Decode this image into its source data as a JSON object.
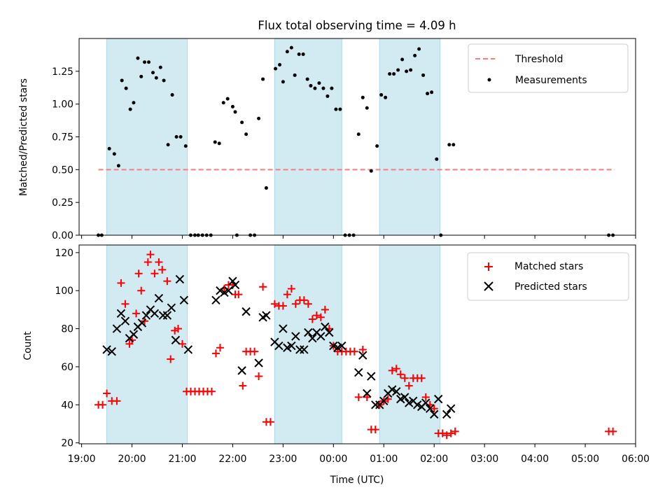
{
  "chart_data": [
    {
      "type": "scatter",
      "title": "Flux total observing time = 4.09 h",
      "ylabel": "Matched/Predicted stars",
      "xlabel": "",
      "x_unit": "hours after 19:00 UTC",
      "xlim": [
        18.95,
        30.0
      ],
      "ylim": [
        0,
        1.5
      ],
      "yticks": [
        "0.00",
        "0.25",
        "0.50",
        "0.75",
        "1.00",
        "1.25"
      ],
      "shaded_intervals": [
        [
          "19:30",
          "21:06"
        ],
        [
          "22:50",
          "00:10"
        ],
        [
          "00:55",
          "02:07"
        ]
      ],
      "legend": {
        "position": "top-right",
        "entries": [
          "Threshold",
          "Measurements"
        ]
      },
      "colors": {
        "threshold": "#ff7a7a",
        "measurements": "#000000",
        "shade": "#add8e6"
      },
      "threshold": {
        "name": "Threshold",
        "value": 0.5,
        "x": [
          "19:20",
          "05:35"
        ]
      },
      "series": [
        {
          "name": "Measurements",
          "points": [
            [
              "19:20",
              0.0
            ],
            [
              "19:24",
              0.0
            ],
            [
              "19:33",
              0.66
            ],
            [
              "19:39",
              0.62
            ],
            [
              "19:44",
              0.53
            ],
            [
              "19:48",
              1.18
            ],
            [
              "19:53",
              1.12
            ],
            [
              "19:58",
              0.96
            ],
            [
              "20:02",
              1.01
            ],
            [
              "20:07",
              1.35
            ],
            [
              "20:11",
              1.21
            ],
            [
              "20:15",
              1.32
            ],
            [
              "20:20",
              1.32
            ],
            [
              "20:25",
              1.24
            ],
            [
              "20:29",
              1.2
            ],
            [
              "20:34",
              1.28
            ],
            [
              "20:38",
              1.18
            ],
            [
              "20:43",
              0.69
            ],
            [
              "20:48",
              1.07
            ],
            [
              "20:53",
              0.75
            ],
            [
              "20:58",
              0.75
            ],
            [
              "21:04",
              0.68
            ],
            [
              "21:10",
              0.0
            ],
            [
              "21:15",
              0.0
            ],
            [
              "21:19",
              0.0
            ],
            [
              "21:24",
              0.0
            ],
            [
              "21:29",
              0.0
            ],
            [
              "21:34",
              0.0
            ],
            [
              "21:39",
              0.71
            ],
            [
              "21:44",
              0.7
            ],
            [
              "21:49",
              1.01
            ],
            [
              "21:54",
              1.04
            ],
            [
              "22:00",
              0.98
            ],
            [
              "22:03",
              0.94
            ],
            [
              "22:05",
              0.0
            ],
            [
              "22:11",
              0.86
            ],
            [
              "22:16",
              0.77
            ],
            [
              "22:21",
              0.0
            ],
            [
              "22:26",
              0.0
            ],
            [
              "22:31",
              0.89
            ],
            [
              "22:36",
              1.19
            ],
            [
              "22:40",
              0.36
            ],
            [
              "22:51",
              1.27
            ],
            [
              "22:56",
              1.3
            ],
            [
              "23:00",
              1.17
            ],
            [
              "23:05",
              1.4
            ],
            [
              "23:10",
              1.43
            ],
            [
              "23:14",
              1.22
            ],
            [
              "23:19",
              1.38
            ],
            [
              "23:24",
              1.38
            ],
            [
              "23:29",
              1.19
            ],
            [
              "23:33",
              1.14
            ],
            [
              "23:38",
              1.12
            ],
            [
              "23:43",
              1.16
            ],
            [
              "23:48",
              1.12
            ],
            [
              "23:53",
              1.06
            ],
            [
              "23:58",
              1.12
            ],
            [
              "00:03",
              0.96
            ],
            [
              "00:08",
              0.96
            ],
            [
              "00:14",
              0.0
            ],
            [
              "00:19",
              0.0
            ],
            [
              "00:24",
              0.0
            ],
            [
              "00:30",
              0.77
            ],
            [
              "00:35",
              1.05
            ],
            [
              "00:40",
              0.97
            ],
            [
              "00:45",
              0.49
            ],
            [
              "00:52",
              0.68
            ],
            [
              "00:57",
              1.07
            ],
            [
              "01:02",
              1.05
            ],
            [
              "01:07",
              1.23
            ],
            [
              "01:12",
              1.23
            ],
            [
              "01:17",
              1.26
            ],
            [
              "01:22",
              1.34
            ],
            [
              "01:27",
              1.25
            ],
            [
              "01:32",
              1.26
            ],
            [
              "01:37",
              1.37
            ],
            [
              "01:42",
              1.42
            ],
            [
              "01:47",
              1.22
            ],
            [
              "01:52",
              1.08
            ],
            [
              "01:57",
              1.09
            ],
            [
              "02:03",
              0.58
            ],
            [
              "02:08",
              0.0
            ],
            [
              "02:18",
              0.69
            ],
            [
              "02:23",
              0.69
            ],
            [
              "05:28",
              0.0
            ],
            [
              "05:33",
              0.0
            ]
          ]
        }
      ]
    },
    {
      "type": "scatter",
      "title": "",
      "ylabel": "Count",
      "xlabel": "Time (UTC)",
      "x_unit": "hours after 19:00 UTC",
      "xlim": [
        18.95,
        30.0
      ],
      "ylim": [
        19.5,
        124
      ],
      "yticks": [
        "20",
        "40",
        "60",
        "80",
        "100",
        "120"
      ],
      "xticks": [
        "19:00",
        "20:00",
        "21:00",
        "22:00",
        "23:00",
        "00:00",
        "01:00",
        "02:00",
        "03:00",
        "04:00",
        "05:00",
        "06:00"
      ],
      "shaded_intervals": [
        [
          "19:30",
          "21:06"
        ],
        [
          "22:50",
          "00:10"
        ],
        [
          "00:55",
          "02:07"
        ]
      ],
      "legend": {
        "position": "top-right",
        "entries": [
          "Matched stars",
          "Predicted stars"
        ]
      },
      "colors": {
        "matched": "#ff0000",
        "predicted": "#000000",
        "shade": "#add8e6"
      },
      "series": [
        {
          "name": "Matched stars",
          "points": [
            [
              "19:20",
              40
            ],
            [
              "19:25",
              40
            ],
            [
              "19:30",
              46
            ],
            [
              "19:36",
              42
            ],
            [
              "19:42",
              42
            ],
            [
              "19:47",
              104
            ],
            [
              "19:52",
              93
            ],
            [
              "19:57",
              72
            ],
            [
              "20:00",
              74
            ],
            [
              "20:05",
              88
            ],
            [
              "20:08",
              109
            ],
            [
              "20:11",
              100
            ],
            [
              "20:15",
              84
            ],
            [
              "20:19",
              115
            ],
            [
              "20:22",
              119
            ],
            [
              "20:27",
              109
            ],
            [
              "20:32",
              115
            ],
            [
              "20:36",
              111
            ],
            [
              "20:42",
              105
            ],
            [
              "20:46",
              64
            ],
            [
              "20:51",
              79
            ],
            [
              "20:55",
              80
            ],
            [
              "21:00",
              72
            ],
            [
              "21:05",
              47
            ],
            [
              "21:10",
              47
            ],
            [
              "21:15",
              47
            ],
            [
              "21:20",
              47
            ],
            [
              "21:25",
              47
            ],
            [
              "21:30",
              47
            ],
            [
              "21:35",
              47
            ],
            [
              "21:40",
              67
            ],
            [
              "21:45",
              70
            ],
            [
              "21:50",
              101
            ],
            [
              "21:55",
              103
            ],
            [
              "22:00",
              103
            ],
            [
              "22:03",
              98
            ],
            [
              "22:07",
              98
            ],
            [
              "22:12",
              50
            ],
            [
              "22:16",
              68
            ],
            [
              "22:21",
              68
            ],
            [
              "22:26",
              68
            ],
            [
              "22:31",
              55
            ],
            [
              "22:36",
              102
            ],
            [
              "22:40",
              31
            ],
            [
              "22:45",
              31
            ],
            [
              "22:50",
              93
            ],
            [
              "22:55",
              92
            ],
            [
              "23:00",
              92
            ],
            [
              "23:05",
              98
            ],
            [
              "23:10",
              101
            ],
            [
              "23:15",
              93
            ],
            [
              "23:20",
              95
            ],
            [
              "23:25",
              95
            ],
            [
              "23:30",
              93
            ],
            [
              "23:35",
              85
            ],
            [
              "23:40",
              87
            ],
            [
              "23:45",
              86
            ],
            [
              "23:50",
              90
            ],
            [
              "23:55",
              80
            ],
            [
              "00:00",
              71
            ],
            [
              "00:05",
              68
            ],
            [
              "00:10",
              68
            ],
            [
              "00:15",
              68
            ],
            [
              "00:20",
              68
            ],
            [
              "00:25",
              68
            ],
            [
              "00:30",
              44
            ],
            [
              "00:35",
              69
            ],
            [
              "00:40",
              44
            ],
            [
              "00:45",
              27
            ],
            [
              "00:50",
              27
            ],
            [
              "00:55",
              40
            ],
            [
              "01:00",
              42
            ],
            [
              "01:05",
              43
            ],
            [
              "01:10",
              58
            ],
            [
              "01:15",
              59
            ],
            [
              "01:20",
              56
            ],
            [
              "01:25",
              54
            ],
            [
              "01:30",
              50
            ],
            [
              "01:35",
              54
            ],
            [
              "01:40",
              54
            ],
            [
              "01:45",
              54
            ],
            [
              "01:50",
              44
            ],
            [
              "01:55",
              40
            ],
            [
              "02:00",
              38
            ],
            [
              "02:05",
              25
            ],
            [
              "02:10",
              25
            ],
            [
              "02:15",
              24
            ],
            [
              "02:20",
              25
            ],
            [
              "02:25",
              26
            ],
            [
              "05:28",
              26
            ],
            [
              "05:33",
              26
            ]
          ]
        },
        {
          "name": "Predicted stars",
          "points": [
            [
              "19:30",
              69
            ],
            [
              "19:36",
              68
            ],
            [
              "19:42",
              80
            ],
            [
              "19:47",
              88
            ],
            [
              "19:52",
              84
            ],
            [
              "19:57",
              75
            ],
            [
              "20:02",
              77
            ],
            [
              "20:07",
              81
            ],
            [
              "20:12",
              83
            ],
            [
              "20:17",
              87
            ],
            [
              "20:22",
              90
            ],
            [
              "20:27",
              88
            ],
            [
              "20:32",
              96
            ],
            [
              "20:37",
              87
            ],
            [
              "20:42",
              87
            ],
            [
              "20:47",
              91
            ],
            [
              "20:52",
              74
            ],
            [
              "20:57",
              106
            ],
            [
              "21:02",
              95
            ],
            [
              "21:07",
              69
            ],
            [
              "21:40",
              95
            ],
            [
              "21:45",
              100
            ],
            [
              "21:50",
              99
            ],
            [
              "21:55",
              100
            ],
            [
              "22:00",
              105
            ],
            [
              "22:03",
              103
            ],
            [
              "22:11",
              58
            ],
            [
              "22:16",
              89
            ],
            [
              "22:31",
              62
            ],
            [
              "22:36",
              86
            ],
            [
              "22:40",
              87
            ],
            [
              "22:50",
              73
            ],
            [
              "22:55",
              71
            ],
            [
              "23:00",
              80
            ],
            [
              "23:05",
              70
            ],
            [
              "23:10",
              71
            ],
            [
              "23:15",
              76
            ],
            [
              "23:20",
              69
            ],
            [
              "23:25",
              69
            ],
            [
              "23:30",
              78
            ],
            [
              "23:35",
              75
            ],
            [
              "23:40",
              78
            ],
            [
              "23:45",
              76
            ],
            [
              "23:50",
              81
            ],
            [
              "23:55",
              78
            ],
            [
              "00:00",
              71
            ],
            [
              "00:05",
              70
            ],
            [
              "00:10",
              71
            ],
            [
              "00:30",
              57
            ],
            [
              "00:35",
              66
            ],
            [
              "00:40",
              46
            ],
            [
              "00:45",
              55
            ],
            [
              "00:50",
              40
            ],
            [
              "00:55",
              40
            ],
            [
              "01:00",
              42
            ],
            [
              "01:05",
              46
            ],
            [
              "01:10",
              48
            ],
            [
              "01:15",
              47
            ],
            [
              "01:20",
              43
            ],
            [
              "01:25",
              44
            ],
            [
              "01:30",
              41
            ],
            [
              "01:35",
              42
            ],
            [
              "01:40",
              40
            ],
            [
              "01:45",
              39
            ],
            [
              "01:50",
              41
            ],
            [
              "01:55",
              38
            ],
            [
              "02:00",
              35
            ],
            [
              "02:05",
              43
            ],
            [
              "02:15",
              35
            ],
            [
              "02:20",
              38
            ]
          ]
        }
      ]
    }
  ]
}
